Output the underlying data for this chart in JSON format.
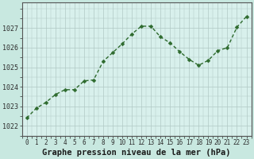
{
  "x": [
    0,
    1,
    2,
    3,
    4,
    5,
    6,
    7,
    8,
    9,
    10,
    11,
    12,
    13,
    14,
    15,
    16,
    17,
    18,
    19,
    20,
    21,
    22,
    23
  ],
  "y": [
    1022.4,
    1022.9,
    1023.2,
    1023.6,
    1023.85,
    1023.85,
    1024.3,
    1024.35,
    1025.3,
    1025.75,
    1026.2,
    1026.7,
    1027.1,
    1027.1,
    1026.55,
    1026.25,
    1025.8,
    1025.4,
    1025.1,
    1025.35,
    1025.85,
    1026.0,
    1027.05,
    1027.6
  ],
  "line_color": "#2d6a2d",
  "marker": "D",
  "marker_size": 2.5,
  "linewidth": 1.0,
  "background_color": "#c8e8e0",
  "plot_bg_color": "#d8f0ec",
  "grid_color": "#b0c8c4",
  "xlabel": "Graphe pression niveau de la mer (hPa)",
  "xlabel_fontsize": 7.5,
  "xlabel_color": "#1a1a1a",
  "ylim": [
    1021.5,
    1028.3
  ],
  "xlim": [
    -0.5,
    23.5
  ],
  "yticks": [
    1022,
    1023,
    1024,
    1025,
    1026,
    1027
  ],
  "xtick_fontsize": 5.5,
  "ytick_fontsize": 6,
  "tick_color": "#2d2d2d"
}
